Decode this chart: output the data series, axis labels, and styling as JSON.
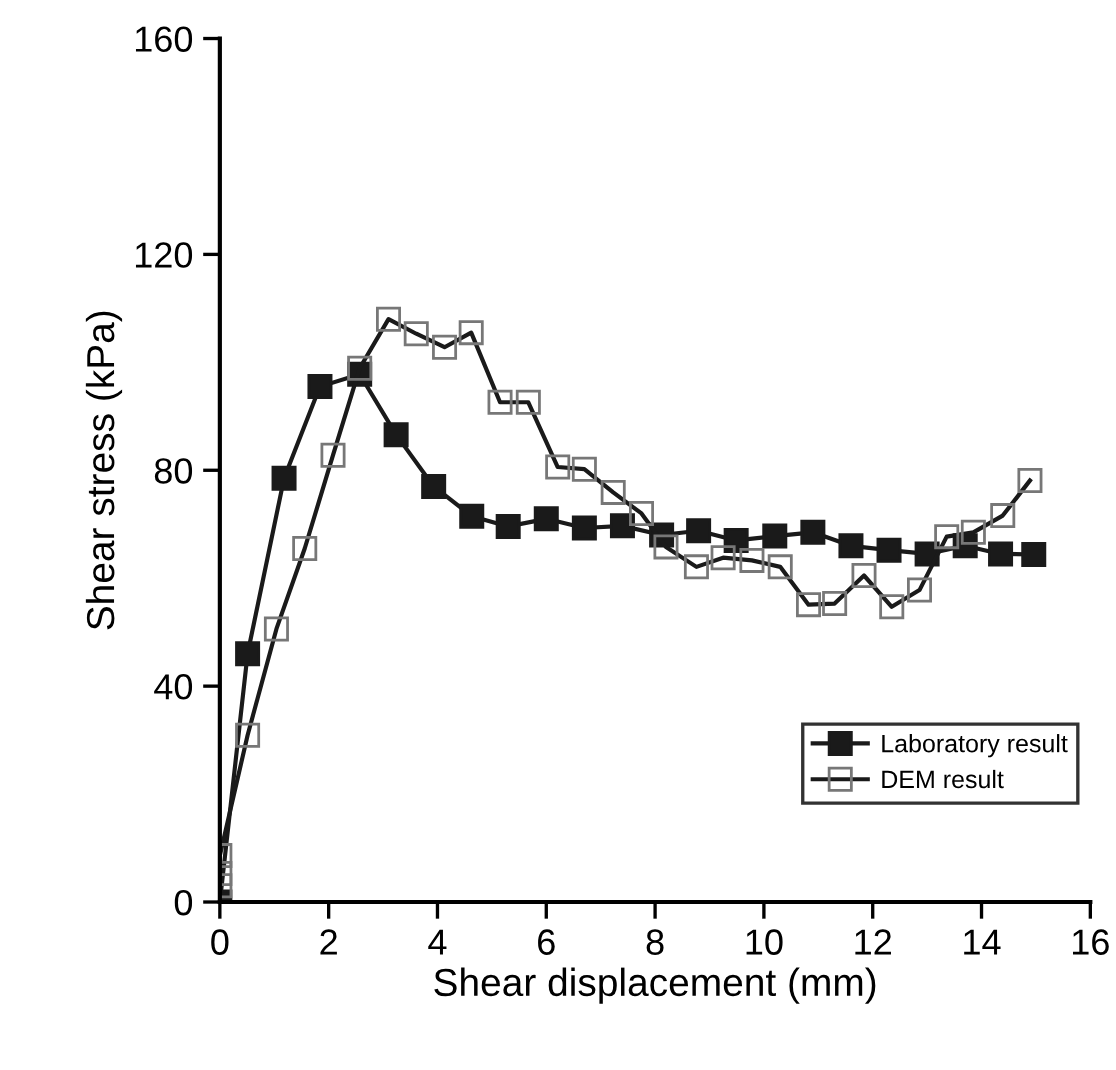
{
  "chart_data": {
    "type": "line",
    "xlabel": "Shear displacement (mm)",
    "ylabel": "Shear stress (kPa)",
    "xlim": [
      0,
      16
    ],
    "xticks": [
      0,
      2,
      4,
      6,
      8,
      10,
      12,
      14,
      16
    ],
    "ylim": [
      0,
      160
    ],
    "yticks": [
      0,
      40,
      80,
      120,
      160
    ],
    "grid": false,
    "legend": "bottom right",
    "line_style": "solid",
    "series": [
      {
        "name": "Laboratory result",
        "color": "#1a1a1a",
        "marker": "square",
        "x": [
          0,
          0.51,
          1.18,
          1.84,
          2.57,
          3.24,
          3.93,
          4.63,
          5.3,
          6.0,
          6.7,
          7.4,
          8.12,
          8.8,
          9.49,
          10.2,
          10.9,
          11.6,
          12.3,
          13.0,
          13.7,
          14.35,
          14.96
        ],
        "values": [
          0,
          46,
          78.5,
          95.5,
          97.8,
          86.6,
          77,
          71.5,
          69.6,
          71,
          69.3,
          69.7,
          68,
          68.8,
          67,
          67.8,
          68.5,
          66,
          65.2,
          64.5,
          66,
          64.5,
          64.4
        ]
      },
      {
        "name": "DEM result",
        "color": "#1a1a1a",
        "marker": "square",
        "x": [
          0,
          0,
          0,
          0.51,
          1.04,
          1.56,
          2.08,
          2.57,
          3.1,
          3.61,
          4.13,
          4.62,
          5.15,
          5.67,
          6.21,
          6.7,
          7.23,
          7.75,
          8.2,
          8.76,
          9.25,
          9.78,
          10.3,
          10.82,
          11.3,
          11.84,
          12.35,
          12.86,
          13.36,
          13.85,
          14.39,
          14.89
        ],
        "values": [
          3,
          5.3,
          8.6,
          30.9,
          50.6,
          65.5,
          82.8,
          98.9,
          108,
          105.3,
          102.8,
          105.5,
          92.6,
          92.6,
          80.6,
          80.2,
          75.9,
          72,
          65.8,
          62.1,
          63.8,
          63.3,
          62.1,
          55.1,
          55.3,
          60.5,
          54.7,
          57.8,
          67.7,
          68.5,
          71.6,
          78.1
        ]
      }
    ]
  }
}
